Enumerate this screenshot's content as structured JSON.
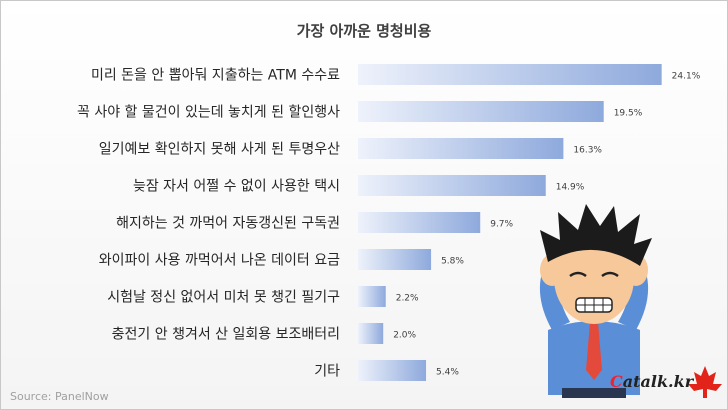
{
  "chart_data": {
    "type": "bar",
    "orientation": "horizontal",
    "title": "가장 아까운 명청비용",
    "categories": [
      "미리 돈을 안 뽑아둬 지출하는 ATM 수수료",
      "꼭 사야 할 물건이 있는데 놓치게 된 할인행사",
      "일기예보 확인하지 못해 사게 된 투명우산",
      "늦잠 자서 어쩔 수 없이 사용한 택시",
      "해지하는 것 까먹어 자동갱신된 구독권",
      "와이파이 사용 까먹어서 나온 데이터 요금",
      "시험날 정신 없어서 미처 못 챙긴 필기구",
      "충전기 안 챙겨서 산 일회용 보조배터리",
      "기타"
    ],
    "values": [
      24.1,
      19.5,
      16.3,
      14.9,
      9.7,
      5.8,
      2.2,
      2.0,
      5.4
    ],
    "value_labels": [
      "24.1%",
      "19.5%",
      "16.3%",
      "14.9%",
      "9.7%",
      "5.8%",
      "2.2%",
      "2.0%",
      "5.4%"
    ],
    "grid": false,
    "legend": "none"
  },
  "source": "Source: PanelNow",
  "logo": {
    "text": "atalk",
    "prefix": "C",
    "suffix": ".kr"
  },
  "colors": {
    "bar_light": "#eef2fb",
    "bar_dark": "#8ea9dc",
    "text": "#262626"
  },
  "illustration": "stressed-man-illustration"
}
